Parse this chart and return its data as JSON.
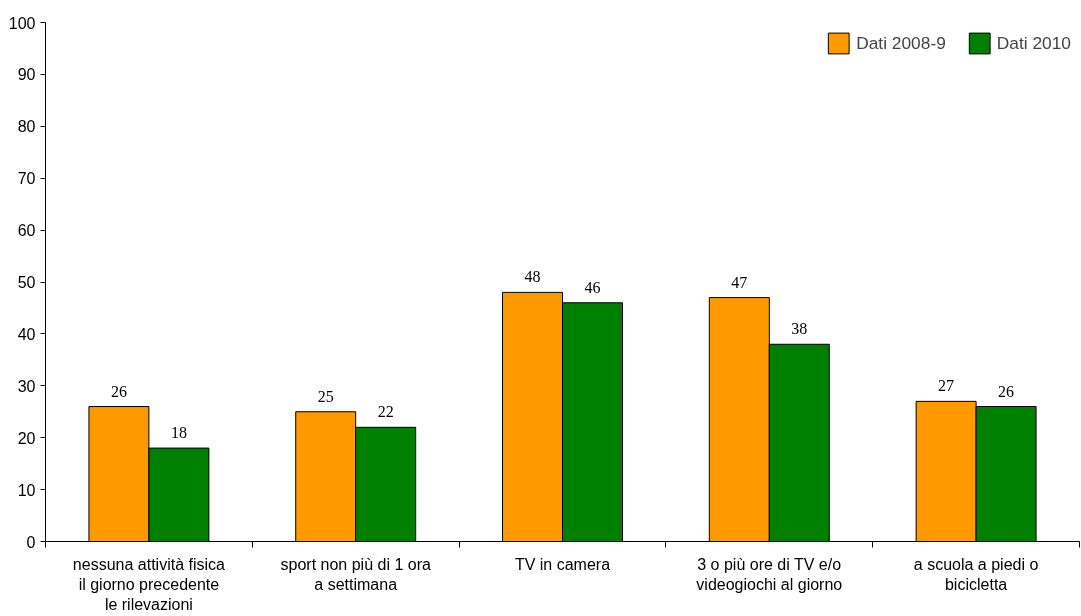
{
  "chart_data": {
    "type": "bar",
    "categories": [
      "nessuna attività fisica\nil giorno precedente\nle rilevazioni",
      "sport non più di 1 ora\na settimana",
      "TV in camera",
      "3 o più ore di TV e/o\nvideogiochi al giorno",
      "a scuola a piedi o\nbicicletta"
    ],
    "series": [
      {
        "name": "Dati 2008-9",
        "color": "#ff9900",
        "values": [
          26,
          25,
          48,
          47,
          27
        ]
      },
      {
        "name": "Dati 2010",
        "color": "#008000",
        "values": [
          18,
          22,
          46,
          38,
          26
        ]
      }
    ],
    "ylim": [
      0,
      100
    ],
    "yticks": [
      0,
      10,
      20,
      30,
      40,
      50,
      60,
      70,
      80,
      90,
      100
    ],
    "grid": false,
    "legend": "top right",
    "data_labels": true
  }
}
